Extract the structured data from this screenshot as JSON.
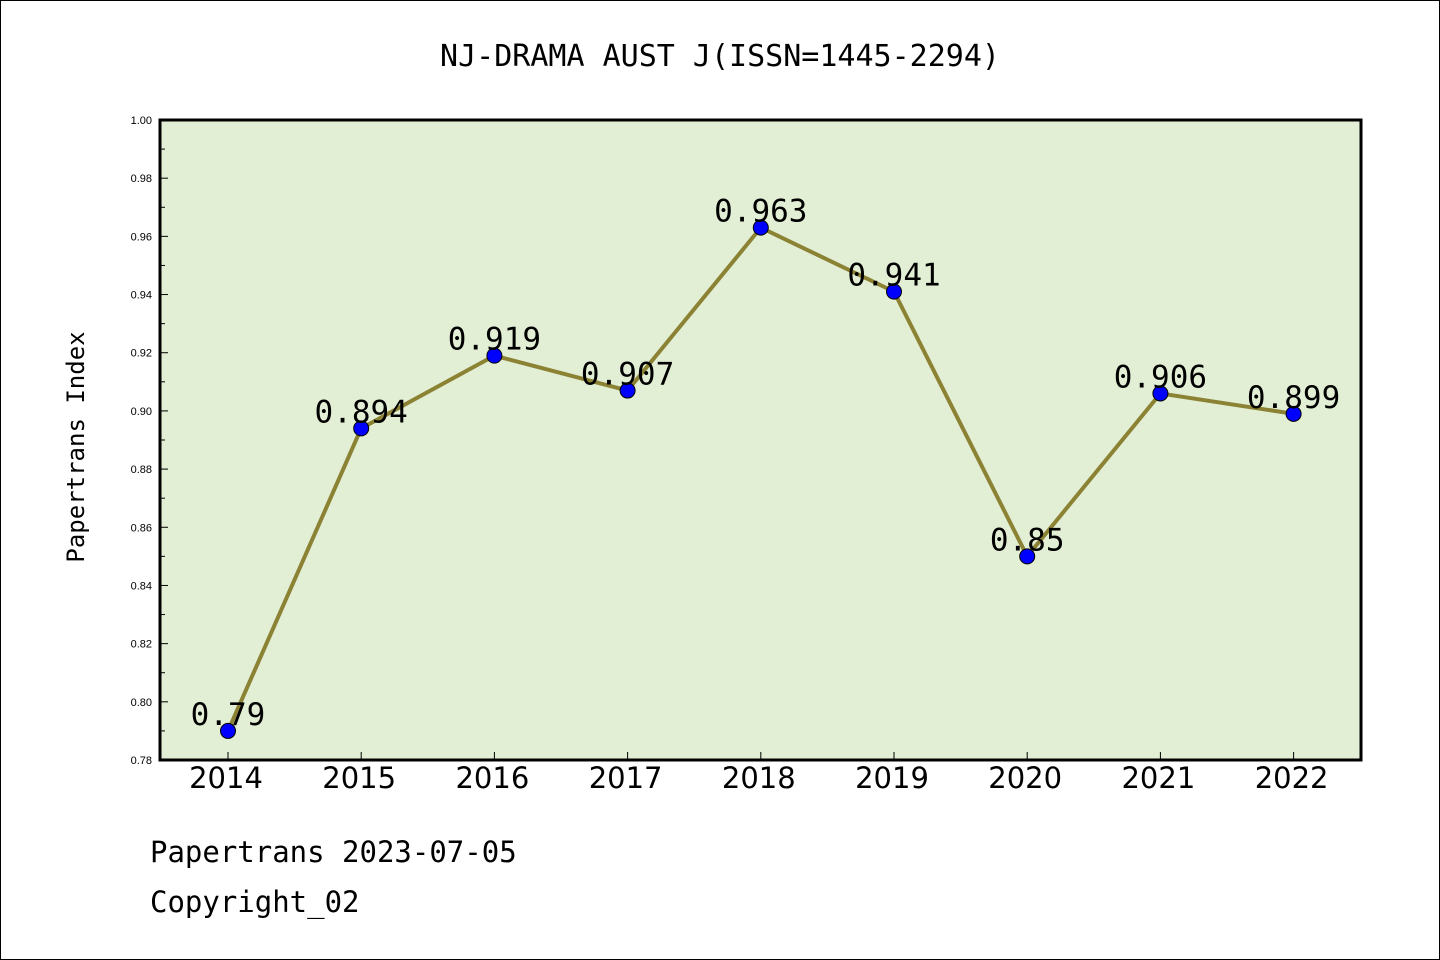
{
  "footer": {
    "line1": "Papertrans 2023-07-05",
    "line2": "Copyright_02"
  },
  "chart_data": {
    "type": "line",
    "title": "NJ-DRAMA AUST J(ISSN=1445-2294)",
    "ylabel": "Papertrans Index",
    "xlabel": "",
    "categories": [
      "2014",
      "2015",
      "2016",
      "2017",
      "2018",
      "2019",
      "2020",
      "2021",
      "2022"
    ],
    "values": [
      0.79,
      0.894,
      0.919,
      0.907,
      0.963,
      0.941,
      0.85,
      0.906,
      0.899
    ],
    "data_labels": [
      "0.79",
      "0.894",
      "0.919",
      "0.907",
      "0.963",
      "0.941",
      "0.85",
      "0.906",
      "0.899"
    ],
    "ylim": [
      0.78,
      1.0
    ],
    "yticks": [
      "0.78",
      "0.80",
      "0.82",
      "0.84",
      "0.86",
      "0.88",
      "0.90",
      "0.92",
      "0.94",
      "0.96",
      "0.98",
      "1.00"
    ],
    "grid": false,
    "colors": {
      "plot_background": "#e2efd5",
      "line": "#8b8234",
      "marker": "#0000ff"
    }
  }
}
